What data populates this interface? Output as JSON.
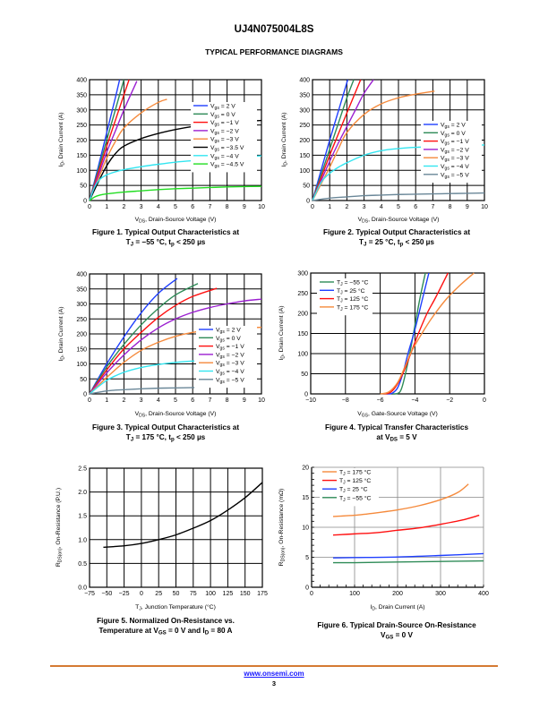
{
  "header": {
    "part_number": "UJ4N075004L8S",
    "section_title": "TYPICAL PERFORMANCE DIAGRAMS"
  },
  "footer": {
    "link": "www.onsemi.com",
    "page": "3"
  },
  "captions": [
    {
      "line1": "Figure 1. Typical Output Characteristics at",
      "line2": "T_J = −55 °C, t_p < 250 µs"
    },
    {
      "line1": "Figure 2. Typical Output Characteristics at",
      "line2": "T_J = 25 °C, t_p < 250 µs"
    },
    {
      "line1": "Figure 3. Typical Output Characteristics at",
      "line2": "T_J = 175 °C, t_p < 250 µs"
    },
    {
      "line1": "Figure 4. Typical Transfer Characteristics",
      "line2": "at V_DS = 5 V"
    },
    {
      "line1": "Figure 5. Normalized On-Resistance vs.",
      "line2": "Temperature at V_GS = 0 V and I_D = 80 A"
    },
    {
      "line1": "Figure 6. Typical Drain-Source On-Resistance",
      "line2": "V_GS = 0 V"
    }
  ],
  "chart_data": [
    {
      "id": "fig1",
      "type": "line",
      "title": "Figure 1. Typical Output Characteristics at TJ = −55 °C, tp < 250 µs",
      "xlabel": "VDS, Drain-Source Voltage (V)",
      "ylabel": "ID, Drain Current (A)",
      "xlim": [
        0,
        10
      ],
      "ylim": [
        0,
        400
      ],
      "xticks": [
        0,
        1,
        2,
        3,
        4,
        5,
        6,
        7,
        8,
        9,
        10
      ],
      "yticks": [
        0,
        50,
        100,
        150,
        200,
        250,
        300,
        350,
        400
      ],
      "grid": true,
      "legend": "center-right",
      "series": [
        {
          "name": "Vgs = 2 V",
          "color": "#1f3fff",
          "x": [
            0,
            0.5,
            1,
            1.5,
            1.75
          ],
          "y": [
            0,
            110,
            225,
            340,
            400
          ]
        },
        {
          "name": "Vgs = 0 V",
          "color": "#2e8b57",
          "x": [
            0,
            0.5,
            1,
            1.5,
            2.0
          ],
          "y": [
            0,
            100,
            200,
            300,
            400
          ]
        },
        {
          "name": "Vgs = −1 V",
          "color": "#ff1010",
          "x": [
            0,
            0.5,
            1,
            1.5,
            2.0,
            2.3
          ],
          "y": [
            0,
            90,
            180,
            265,
            350,
            400
          ]
        },
        {
          "name": "Vgs = −2 V",
          "color": "#9b1fd0",
          "x": [
            0,
            0.5,
            1,
            1.5,
            2.0,
            2.75
          ],
          "y": [
            0,
            80,
            160,
            230,
            300,
            395
          ]
        },
        {
          "name": "Vgs = −3 V",
          "color": "#f58a3c",
          "x": [
            0,
            0.5,
            1,
            1.5,
            2,
            3,
            4,
            4.5
          ],
          "y": [
            0,
            70,
            140,
            195,
            240,
            290,
            325,
            335
          ]
        },
        {
          "name": "Vgs = −3.5 V",
          "color": "#000000",
          "x": [
            0,
            0.5,
            1,
            1.5,
            2,
            3,
            4,
            5,
            6,
            7,
            8,
            9,
            10
          ],
          "y": [
            0,
            60,
            115,
            155,
            180,
            205,
            222,
            235,
            245,
            252,
            258,
            262,
            265
          ]
        },
        {
          "name": "Vgs = −4 V",
          "color": "#33e5f0",
          "x": [
            0,
            0.3,
            0.6,
            1,
            1.5,
            2,
            3,
            4,
            5,
            6,
            7,
            8,
            9,
            10
          ],
          "y": [
            0,
            45,
            70,
            85,
            95,
            102,
            112,
            120,
            127,
            132,
            137,
            141,
            145,
            148
          ]
        },
        {
          "name": "Vgs = −4.5 V",
          "color": "#22dd22",
          "x": [
            0,
            0.3,
            0.6,
            1,
            2,
            3,
            4,
            5,
            6,
            7,
            8,
            9,
            10
          ],
          "y": [
            0,
            12,
            18,
            22,
            28,
            32,
            36,
            39,
            41,
            43,
            45,
            46,
            47
          ]
        }
      ]
    },
    {
      "id": "fig2",
      "type": "line",
      "title": "Figure 2. Typical Output Characteristics at TJ = 25 °C, tp < 250 µs",
      "xlabel": "VDS, Drain-Source Voltage (V)",
      "ylabel": "ID, Drain Current (A)",
      "xlim": [
        0,
        10
      ],
      "ylim": [
        0,
        400
      ],
      "xticks": [
        0,
        1,
        2,
        3,
        4,
        5,
        6,
        7,
        8,
        9,
        10
      ],
      "yticks": [
        0,
        50,
        100,
        150,
        200,
        250,
        300,
        350,
        400
      ],
      "grid": true,
      "legend": "center-right",
      "series": [
        {
          "name": "Vgs = 2 V",
          "color": "#1f3fff",
          "x": [
            0,
            0.5,
            1,
            1.5,
            2.05
          ],
          "y": [
            0,
            100,
            200,
            295,
            400
          ]
        },
        {
          "name": "Vgs = 0 V",
          "color": "#2e8b57",
          "x": [
            0,
            0.5,
            1,
            1.5,
            2,
            2.4
          ],
          "y": [
            0,
            85,
            170,
            255,
            340,
            400
          ]
        },
        {
          "name": "Vgs = −1 V",
          "color": "#ff1010",
          "x": [
            0,
            0.5,
            1,
            1.5,
            2,
            2.8
          ],
          "y": [
            0,
            75,
            150,
            220,
            290,
            400
          ]
        },
        {
          "name": "Vgs = −2 V",
          "color": "#9b1fd0",
          "x": [
            0,
            0.5,
            1,
            1.5,
            2,
            2.5,
            3,
            3.55
          ],
          "y": [
            0,
            65,
            130,
            190,
            245,
            300,
            355,
            400
          ]
        },
        {
          "name": "Vgs = −3 V",
          "color": "#f58a3c",
          "x": [
            0,
            0.5,
            1,
            1.5,
            2,
            3,
            4,
            5,
            6,
            7.1
          ],
          "y": [
            0,
            55,
            110,
            170,
            225,
            285,
            320,
            340,
            352,
            362
          ]
        },
        {
          "name": "Vgs = −4 V",
          "color": "#33e5f0",
          "x": [
            0,
            0.5,
            1,
            1.5,
            2,
            3,
            4,
            5,
            6,
            7,
            8,
            9,
            10
          ],
          "y": [
            0,
            60,
            90,
            110,
            125,
            150,
            165,
            172,
            176,
            178,
            180,
            182,
            184
          ]
        },
        {
          "name": "Vgs = −5 V",
          "color": "#6a8798",
          "x": [
            0,
            1,
            2,
            3,
            4,
            5,
            6,
            7,
            8,
            9,
            10
          ],
          "y": [
            0,
            8,
            12,
            16,
            18,
            20,
            21,
            22,
            23,
            24,
            25
          ]
        }
      ]
    },
    {
      "id": "fig3",
      "type": "line",
      "title": "Figure 3. Typical Output Characteristics at TJ = 175 °C, tp < 250 µs",
      "xlabel": "VDS, Drain-Source Voltage (V)",
      "ylabel": "ID, Drain Current (A)",
      "xlim": [
        0,
        10
      ],
      "ylim": [
        0,
        400
      ],
      "xticks": [
        0,
        1,
        2,
        3,
        4,
        5,
        6,
        7,
        8,
        9,
        10
      ],
      "yticks": [
        0,
        50,
        100,
        150,
        200,
        250,
        300,
        350,
        400
      ],
      "grid": true,
      "legend": "lower-right",
      "series": [
        {
          "name": "Vgs = 2 V",
          "color": "#1f3fff",
          "x": [
            0,
            1,
            2,
            3,
            4,
            5.1
          ],
          "y": [
            0,
            100,
            190,
            270,
            335,
            385
          ]
        },
        {
          "name": "Vgs = 0 V",
          "color": "#2e8b57",
          "x": [
            0,
            1,
            2,
            3,
            4,
            5,
            6.3
          ],
          "y": [
            0,
            90,
            165,
            230,
            285,
            330,
            368
          ]
        },
        {
          "name": "Vgs = −1 V",
          "color": "#ff1010",
          "x": [
            0,
            1,
            2,
            3,
            4,
            5,
            6,
            7.4
          ],
          "y": [
            0,
            80,
            150,
            205,
            255,
            295,
            325,
            352
          ]
        },
        {
          "name": "Vgs = −2 V",
          "color": "#9b1fd0",
          "x": [
            0,
            1,
            2,
            3,
            4,
            5,
            6,
            7,
            8,
            9,
            10
          ],
          "y": [
            0,
            70,
            130,
            180,
            220,
            250,
            272,
            288,
            300,
            310,
            316
          ]
        },
        {
          "name": "Vgs = −3 V",
          "color": "#f58a3c",
          "x": [
            0,
            1,
            2,
            3,
            4,
            5,
            6,
            7,
            8,
            9,
            10
          ],
          "y": [
            0,
            55,
            105,
            145,
            172,
            192,
            205,
            212,
            217,
            220,
            222
          ]
        },
        {
          "name": "Vgs = −4 V",
          "color": "#33e5f0",
          "x": [
            0,
            1,
            2,
            3,
            4,
            5,
            6.1
          ],
          "y": [
            0,
            45,
            72,
            88,
            98,
            105,
            110
          ]
        },
        {
          "name": "Vgs = −5 V",
          "color": "#6a8798",
          "x": [
            0,
            1,
            2,
            3,
            4,
            5,
            6.1
          ],
          "y": [
            0,
            10,
            14,
            17,
            19,
            20,
            21
          ]
        }
      ]
    },
    {
      "id": "fig4",
      "type": "line",
      "title": "Figure 4. Typical Transfer Characteristics at VDS = 5 V",
      "xlabel": "VGS, Gate-Source Voltage (V)",
      "ylabel": "ID, Drain Current (A)",
      "xlim": [
        -10,
        0
      ],
      "ylim": [
        0,
        300
      ],
      "xticks": [
        -10,
        -8,
        -6,
        -4,
        -2,
        0
      ],
      "yticks": [
        0,
        50,
        100,
        150,
        200,
        250,
        300
      ],
      "grid": true,
      "legend": "top-left",
      "series": [
        {
          "name": "TJ = −55 °C",
          "color": "#2e8b57",
          "x": [
            -5.3,
            -5.0,
            -4.8,
            -4.6,
            -4.3,
            -4.0,
            -3.7,
            -3.4
          ],
          "y": [
            0,
            1,
            10,
            40,
            100,
            170,
            240,
            300
          ]
        },
        {
          "name": "TJ = 25 °C",
          "color": "#1f3fff",
          "x": [
            -5.6,
            -5.3,
            -5.0,
            -4.7,
            -4.4,
            -4.0,
            -3.6,
            -3.2
          ],
          "y": [
            0,
            2,
            15,
            50,
            100,
            160,
            230,
            300
          ]
        },
        {
          "name": "TJ = 125 °C",
          "color": "#ff1010",
          "x": [
            -5.8,
            -5.4,
            -5.0,
            -4.6,
            -4.2,
            -3.8,
            -3.3,
            -2.8,
            -2.1
          ],
          "y": [
            0,
            4,
            25,
            60,
            105,
            150,
            200,
            240,
            300
          ]
        },
        {
          "name": "TJ = 175 °C",
          "color": "#f58a3c",
          "x": [
            -6.0,
            -5.5,
            -5.0,
            -4.6,
            -4.2,
            -3.6,
            -3.0,
            -2.2,
            -1.4,
            -0.6
          ],
          "y": [
            0,
            5,
            28,
            65,
            105,
            150,
            190,
            235,
            270,
            300
          ]
        }
      ]
    },
    {
      "id": "fig5",
      "type": "line",
      "title": "Figure 5. Normalized On-Resistance vs. Temperature at VGS = 0 V and ID = 80 A",
      "xlabel": "TJ, Junction Temperature (°C)",
      "ylabel": "RDS(on), On-Resistance (P.U.)",
      "xlim": [
        -75,
        175
      ],
      "ylim": [
        0.0,
        2.5
      ],
      "xticks": [
        -75,
        -50,
        -25,
        0,
        25,
        50,
        75,
        100,
        125,
        150,
        175
      ],
      "yticks": [
        "0.0",
        "0.5",
        "1.0",
        "1.5",
        "2.0",
        "2.5"
      ],
      "grid": true,
      "series": [
        {
          "name": "RDS(on)",
          "color": "#000000",
          "x": [
            -55,
            -25,
            0,
            25,
            50,
            75,
            100,
            125,
            150,
            175
          ],
          "y": [
            0.84,
            0.87,
            0.92,
            1.0,
            1.1,
            1.24,
            1.4,
            1.62,
            1.88,
            2.2
          ]
        }
      ]
    },
    {
      "id": "fig6",
      "type": "line",
      "title": "Figure 6. Typical Drain-Source On-Resistance VGS = 0 V",
      "xlabel": "ID, Drain Current (A)",
      "ylabel": "RDS(on), On-Resistance (mΩ)",
      "xlim": [
        0,
        400
      ],
      "ylim": [
        0,
        20
      ],
      "xticks": [
        0,
        100,
        200,
        300,
        400
      ],
      "yticks": [
        0,
        5,
        10,
        15,
        20
      ],
      "grid": true,
      "legend": "top-left",
      "series": [
        {
          "name": "TJ = 175 °C",
          "color": "#f58a3c",
          "x": [
            50,
            100,
            150,
            200,
            250,
            300,
            340,
            365
          ],
          "y": [
            11.8,
            12.0,
            12.4,
            12.9,
            13.6,
            14.6,
            15.8,
            17.2
          ]
        },
        {
          "name": "TJ = 125 °C",
          "color": "#ff1010",
          "x": [
            50,
            100,
            150,
            200,
            250,
            300,
            350,
            390
          ],
          "y": [
            8.7,
            8.9,
            9.1,
            9.5,
            9.9,
            10.5,
            11.2,
            12.0
          ]
        },
        {
          "name": "TJ = 25 °C",
          "color": "#1f3fff",
          "x": [
            50,
            100,
            200,
            300,
            400
          ],
          "y": [
            4.9,
            4.95,
            5.05,
            5.3,
            5.6
          ]
        },
        {
          "name": "TJ = −55 °C",
          "color": "#2e8b57",
          "x": [
            50,
            100,
            200,
            300,
            400
          ],
          "y": [
            4.1,
            4.1,
            4.2,
            4.3,
            4.4
          ]
        }
      ]
    }
  ]
}
